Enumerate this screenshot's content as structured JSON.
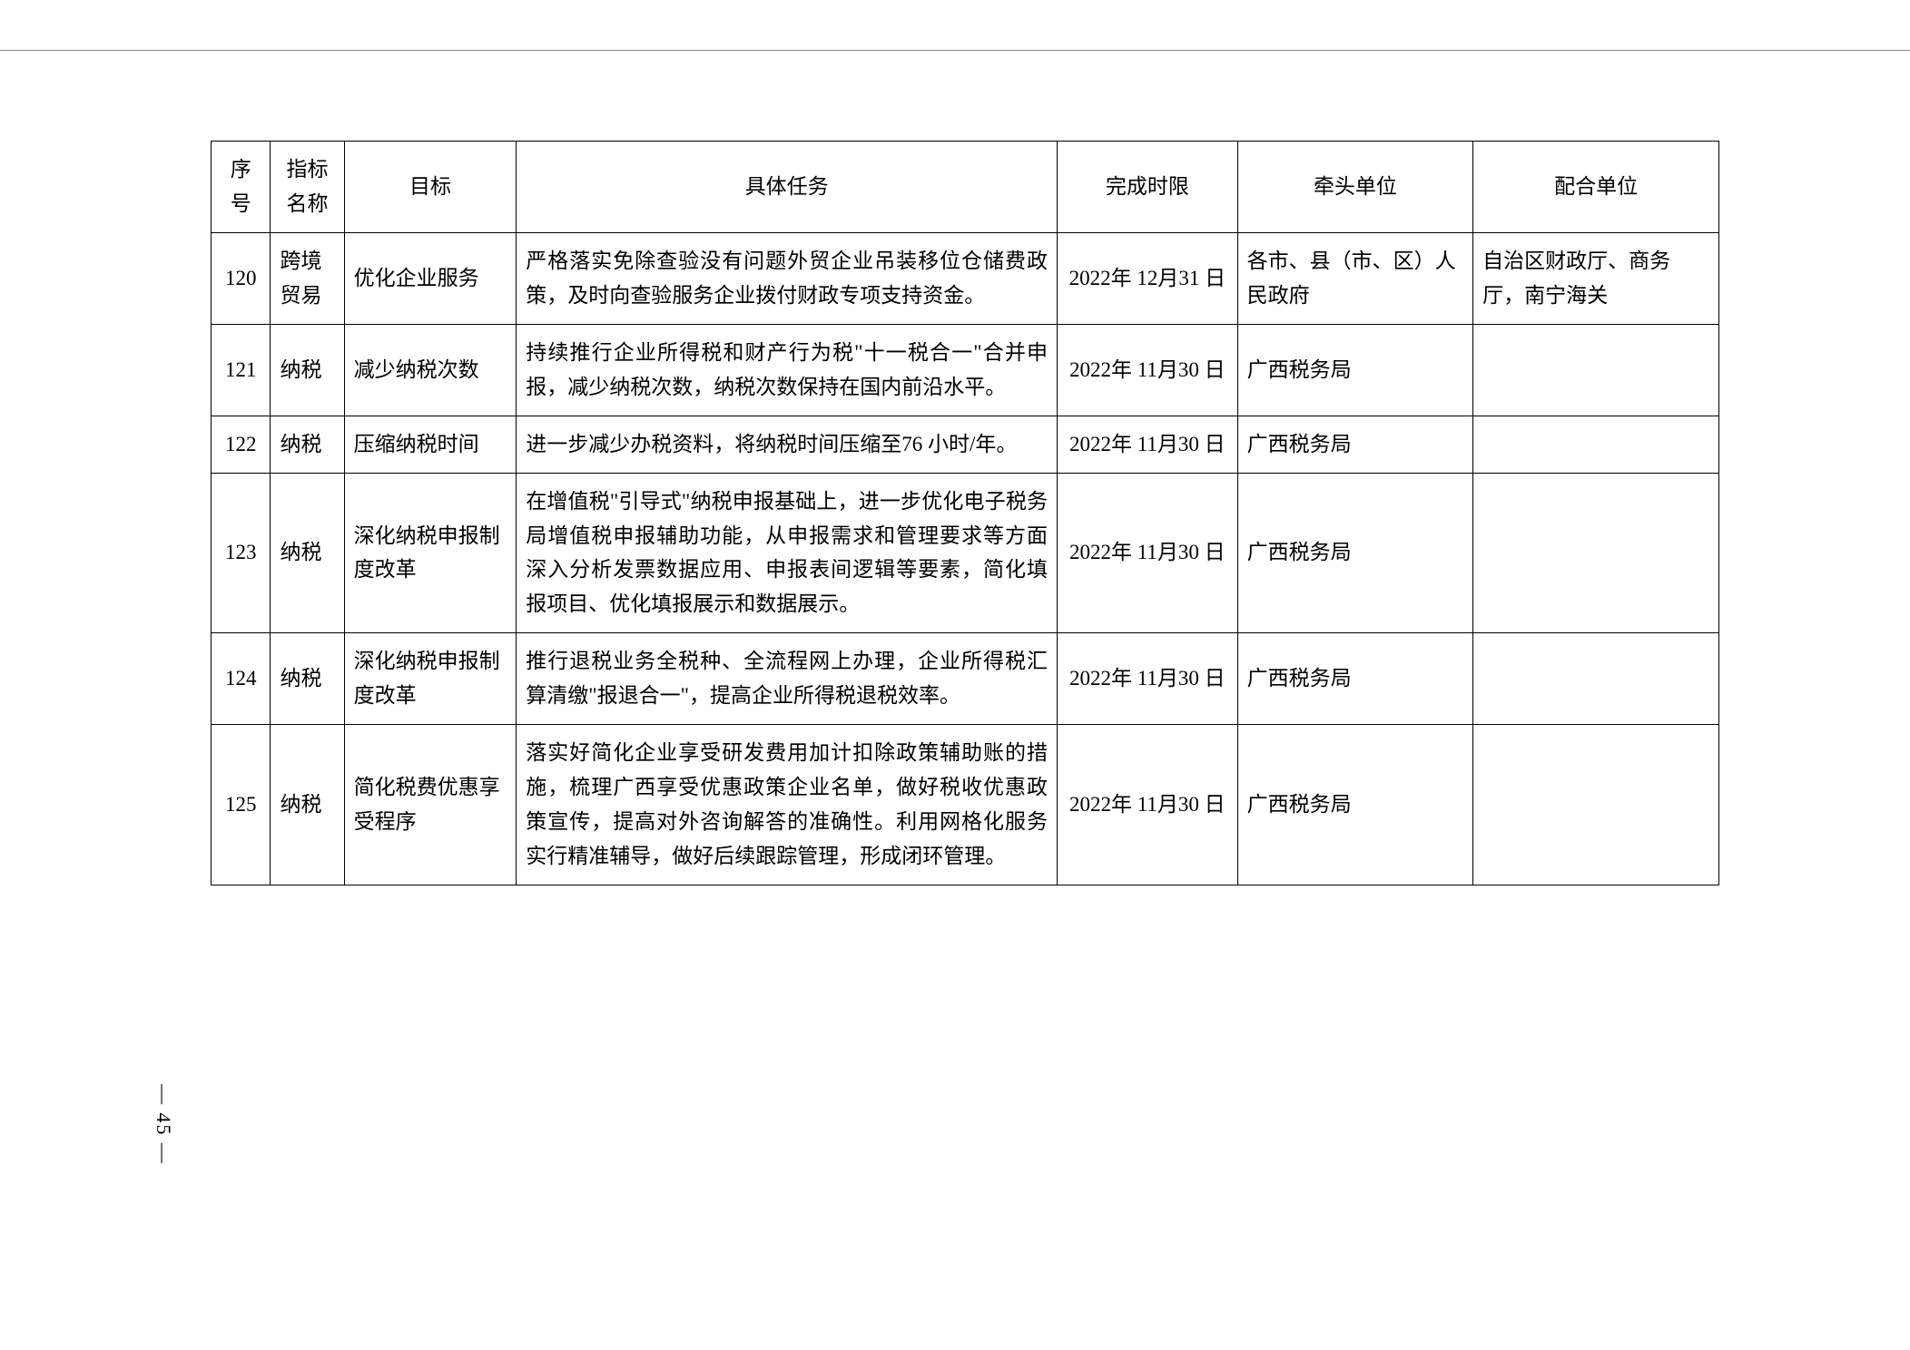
{
  "table": {
    "columns": [
      {
        "label": "序号",
        "class": "col-num"
      },
      {
        "label": "指标名称",
        "class": "col-indicator"
      },
      {
        "label": "目标",
        "class": "col-target"
      },
      {
        "label": "具体任务",
        "class": "col-task"
      },
      {
        "label": "完成时限",
        "class": "col-deadline"
      },
      {
        "label": "牵头单位",
        "class": "col-lead"
      },
      {
        "label": "配合单位",
        "class": "col-support"
      }
    ],
    "rows": [
      {
        "num": "120",
        "indicator": "跨境贸易",
        "target": "优化企业服务",
        "task": "严格落实免除查验没有问题外贸企业吊装移位仓储费政策，及时向查验服务企业拨付财政专项支持资金。",
        "deadline": "2022年 12月31 日",
        "lead": "各市、县（市、区）人民政府",
        "support": "自治区财政厅、商务厅，南宁海关"
      },
      {
        "num": "121",
        "indicator": "纳税",
        "target": "减少纳税次数",
        "task": "持续推行企业所得税和财产行为税\"十一税合一\"合并申报，减少纳税次数，纳税次数保持在国内前沿水平。",
        "deadline": "2022年 11月30 日",
        "lead": "广西税务局",
        "support": ""
      },
      {
        "num": "122",
        "indicator": "纳税",
        "target": "压缩纳税时间",
        "task": "进一步减少办税资料，将纳税时间压缩至76 小时/年。",
        "deadline": "2022年 11月30 日",
        "lead": "广西税务局",
        "support": ""
      },
      {
        "num": "123",
        "indicator": "纳税",
        "target": "深化纳税申报制度改革",
        "task": "在增值税\"引导式\"纳税申报基础上，进一步优化电子税务局增值税申报辅助功能，从申报需求和管理要求等方面深入分析发票数据应用、申报表间逻辑等要素，简化填报项目、优化填报展示和数据展示。",
        "deadline": "2022年 11月30 日",
        "lead": "广西税务局",
        "support": ""
      },
      {
        "num": "124",
        "indicator": "纳税",
        "target": "深化纳税申报制度改革",
        "task": "推行退税业务全税种、全流程网上办理，企业所得税汇算清缴\"报退合一\"，提高企业所得税退税效率。",
        "deadline": "2022年 11月30 日",
        "lead": "广西税务局",
        "support": ""
      },
      {
        "num": "125",
        "indicator": "纳税",
        "target": "简化税费优惠享受程序",
        "task": "落实好简化企业享受研发费用加计扣除政策辅助账的措施，梳理广西享受优惠政策企业名单，做好税收优惠政策宣传，提高对外咨询解答的准确性。利用网格化服务实行精准辅导，做好后续跟踪管理，形成闭环管理。",
        "deadline": "2022年 11月30 日",
        "lead": "广西税务局",
        "support": ""
      }
    ]
  },
  "page_number": "— 45 —",
  "styling": {
    "font_size": 23,
    "line_height": 1.65,
    "border_color": "#000000",
    "background_color": "#ffffff",
    "text_color": "#000000"
  }
}
